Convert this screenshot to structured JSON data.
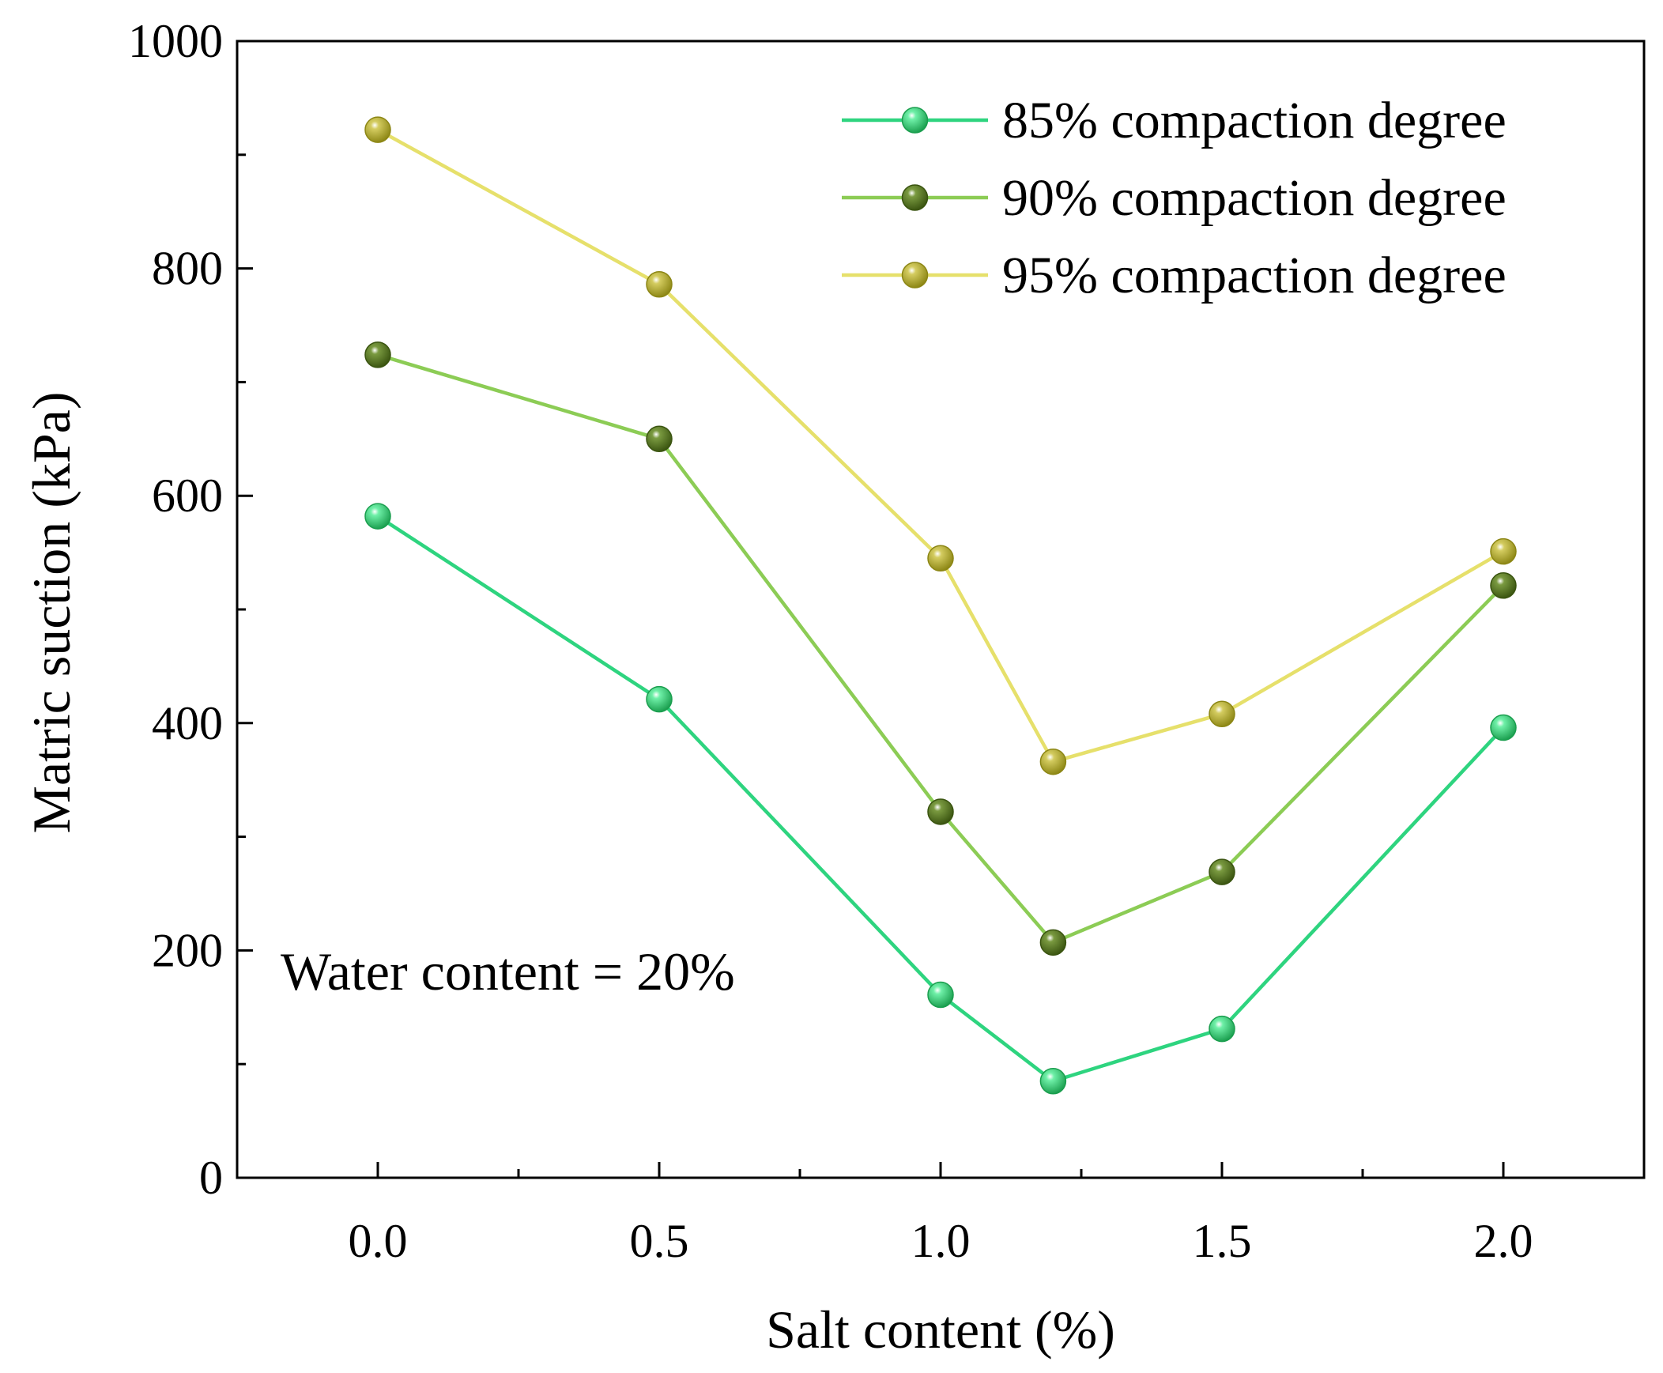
{
  "chart_data": {
    "type": "line",
    "title": "",
    "xlabel": "Salt content (%)",
    "ylabel": "Matric suction (kPa)",
    "xlim": [
      -0.25,
      2.25
    ],
    "ylim": [
      0,
      1000
    ],
    "x_ticks": [
      0.0,
      0.5,
      1.0,
      1.5,
      2.0
    ],
    "x_tick_labels": [
      "0.0",
      "0.5",
      "1.0",
      "1.5",
      "2.0"
    ],
    "x_minor_ticks": [
      0.25,
      0.75,
      1.25,
      1.75
    ],
    "y_ticks": [
      0,
      200,
      400,
      600,
      800,
      1000
    ],
    "y_tick_labels": [
      "0",
      "200",
      "400",
      "600",
      "800",
      "1000"
    ],
    "y_minor_ticks": [
      100,
      300,
      500,
      700,
      900
    ],
    "grid": false,
    "legend_position": "top-right",
    "annotation": "Water content = 20%",
    "x": [
      0.0,
      0.5,
      1.0,
      1.2,
      1.5,
      2.0
    ],
    "series": [
      {
        "name": "85% compaction degree",
        "values": [
          582,
          421,
          161,
          85,
          131,
          396
        ],
        "line_color": "#2ed47f",
        "marker_color": "#1a9e4e",
        "marker_highlight": "#6ff0a8"
      },
      {
        "name": "90% compaction degree",
        "values": [
          724,
          650,
          322,
          207,
          269,
          521
        ],
        "line_color": "#8ccc55",
        "marker_color": "#3a5410",
        "marker_highlight": "#7a9a40"
      },
      {
        "name": "95% compaction degree",
        "values": [
          922,
          786,
          545,
          366,
          408,
          551
        ],
        "line_color": "#e6e06b",
        "marker_color": "#8c8614",
        "marker_highlight": "#d4cc60"
      }
    ]
  }
}
